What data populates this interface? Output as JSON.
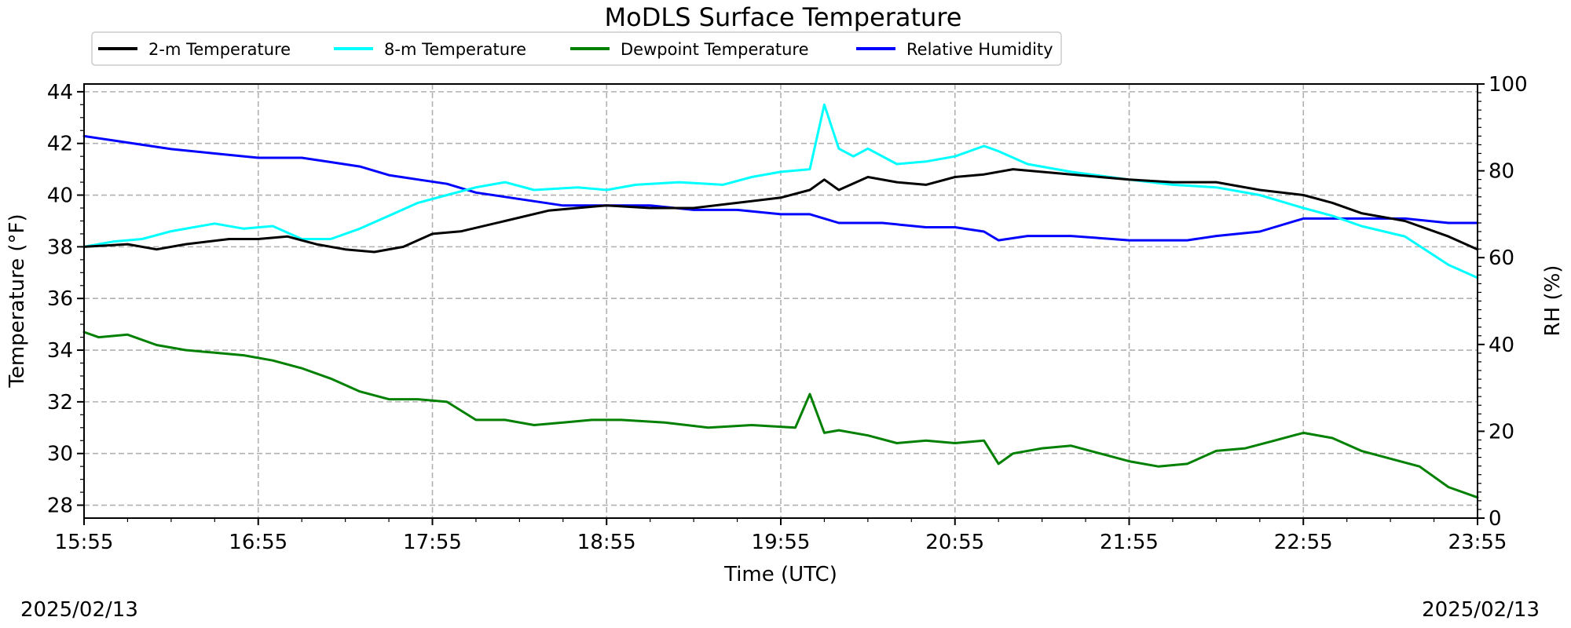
{
  "chart_data": {
    "type": "line",
    "title": "MoDLS Surface Temperature",
    "xlabel": "Time (UTC)",
    "ylabel": "Temperature ($^\\circ$F)",
    "ylabel_display": "Temperature (°F)",
    "y2label": "RH (%)",
    "ylim": [
      27.5,
      44.3
    ],
    "y2lim": [
      0,
      100
    ],
    "xlim": [
      "15:55",
      "23:55"
    ],
    "x_ticks": [
      "15:55",
      "16:55",
      "17:55",
      "18:55",
      "19:55",
      "20:55",
      "21:55",
      "22:55",
      "23:55"
    ],
    "y_ticks": [
      28,
      30,
      32,
      34,
      36,
      38,
      40,
      42,
      44
    ],
    "y2_ticks": [
      0,
      20,
      40,
      60,
      80,
      100
    ],
    "grid": true,
    "legend_placement": "top-left, above plot",
    "date_left": "2025/02/13",
    "date_right": "2025/02/13",
    "series": [
      {
        "name": "2-m Temperature",
        "axis": "left",
        "color": "#000000",
        "x": [
          "15:55",
          "16:10",
          "16:20",
          "16:30",
          "16:45",
          "16:55",
          "17:05",
          "17:15",
          "17:25",
          "17:35",
          "17:45",
          "17:55",
          "18:05",
          "18:20",
          "18:35",
          "18:55",
          "19:10",
          "19:25",
          "19:40",
          "19:55",
          "20:05",
          "20:10",
          "20:15",
          "20:25",
          "20:35",
          "20:45",
          "20:55",
          "21:05",
          "21:15",
          "21:35",
          "21:55",
          "22:10",
          "22:25",
          "22:40",
          "22:55",
          "23:05",
          "23:15",
          "23:30",
          "23:45",
          "23:55"
        ],
        "values": [
          38.0,
          38.1,
          37.9,
          38.1,
          38.3,
          38.3,
          38.4,
          38.1,
          37.9,
          37.8,
          38.0,
          38.5,
          38.6,
          39.0,
          39.4,
          39.6,
          39.5,
          39.5,
          39.7,
          39.9,
          40.2,
          40.6,
          40.2,
          40.7,
          40.5,
          40.4,
          40.7,
          40.8,
          41.0,
          40.8,
          40.6,
          40.5,
          40.5,
          40.2,
          40.0,
          39.7,
          39.3,
          39.0,
          38.4,
          37.9
        ]
      },
      {
        "name": "8-m Temperature",
        "axis": "left",
        "color": "#00ffff",
        "x": [
          "15:55",
          "16:05",
          "16:15",
          "16:25",
          "16:40",
          "16:50",
          "17:00",
          "17:10",
          "17:20",
          "17:30",
          "17:40",
          "17:50",
          "18:00",
          "18:10",
          "18:20",
          "18:30",
          "18:45",
          "18:55",
          "19:05",
          "19:20",
          "19:35",
          "19:45",
          "19:55",
          "20:05",
          "20:10",
          "20:15",
          "20:20",
          "20:25",
          "20:35",
          "20:45",
          "20:55",
          "21:05",
          "21:10",
          "21:20",
          "21:35",
          "21:55",
          "22:10",
          "22:25",
          "22:40",
          "22:55",
          "23:05",
          "23:15",
          "23:30",
          "23:45",
          "23:55"
        ],
        "values": [
          38.0,
          38.2,
          38.3,
          38.6,
          38.9,
          38.7,
          38.8,
          38.3,
          38.3,
          38.7,
          39.2,
          39.7,
          40.0,
          40.3,
          40.5,
          40.2,
          40.3,
          40.2,
          40.4,
          40.5,
          40.4,
          40.7,
          40.9,
          41.0,
          43.5,
          41.8,
          41.5,
          41.8,
          41.2,
          41.3,
          41.5,
          41.9,
          41.7,
          41.2,
          40.9,
          40.6,
          40.4,
          40.3,
          40.0,
          39.5,
          39.2,
          38.8,
          38.4,
          37.3,
          36.8
        ]
      },
      {
        "name": "Dewpoint Temperature",
        "axis": "left",
        "color": "#008000",
        "x": [
          "15:55",
          "16:00",
          "16:10",
          "16:20",
          "16:30",
          "16:40",
          "16:50",
          "17:00",
          "17:10",
          "17:20",
          "17:30",
          "17:40",
          "17:50",
          "18:00",
          "18:10",
          "18:20",
          "18:30",
          "18:40",
          "18:50",
          "19:00",
          "19:15",
          "19:30",
          "19:45",
          "20:00",
          "20:05",
          "20:10",
          "20:15",
          "20:25",
          "20:35",
          "20:45",
          "20:55",
          "21:05",
          "21:10",
          "21:15",
          "21:25",
          "21:35",
          "21:45",
          "21:55",
          "22:05",
          "22:15",
          "22:25",
          "22:35",
          "22:45",
          "22:55",
          "23:05",
          "23:15",
          "23:25",
          "23:35",
          "23:45",
          "23:55"
        ],
        "values": [
          34.7,
          34.5,
          34.6,
          34.2,
          34.0,
          33.9,
          33.8,
          33.6,
          33.3,
          32.9,
          32.4,
          32.1,
          32.1,
          32.0,
          31.3,
          31.3,
          31.1,
          31.2,
          31.3,
          31.3,
          31.2,
          31.0,
          31.1,
          31.0,
          32.3,
          30.8,
          30.9,
          30.7,
          30.4,
          30.5,
          30.4,
          30.5,
          29.6,
          30.0,
          30.2,
          30.3,
          30.0,
          29.7,
          29.5,
          29.6,
          30.1,
          30.2,
          30.5,
          30.8,
          30.6,
          30.1,
          29.8,
          29.5,
          28.7,
          28.3
        ]
      },
      {
        "name": "Relative Humidity",
        "axis": "right",
        "color": "#0000ff",
        "x": [
          "15:55",
          "16:05",
          "16:15",
          "16:25",
          "16:40",
          "16:55",
          "17:10",
          "17:20",
          "17:30",
          "17:40",
          "17:50",
          "18:00",
          "18:10",
          "18:20",
          "18:30",
          "18:40",
          "18:55",
          "19:10",
          "19:25",
          "19:40",
          "19:55",
          "20:05",
          "20:10",
          "20:15",
          "20:30",
          "20:45",
          "20:55",
          "21:05",
          "21:10",
          "21:20",
          "21:35",
          "21:55",
          "22:15",
          "22:25",
          "22:40",
          "22:55",
          "23:05",
          "23:15",
          "23:30",
          "23:45",
          "23:55"
        ],
        "values": [
          88,
          87,
          86,
          85,
          84,
          83,
          83,
          82,
          81,
          79,
          78,
          77,
          75,
          74,
          73,
          72,
          72,
          72,
          71,
          71,
          70,
          70,
          69,
          68,
          68,
          67,
          67,
          66,
          64,
          65,
          65,
          64,
          64,
          65,
          66,
          69,
          69,
          69,
          69,
          68,
          68
        ]
      }
    ]
  }
}
